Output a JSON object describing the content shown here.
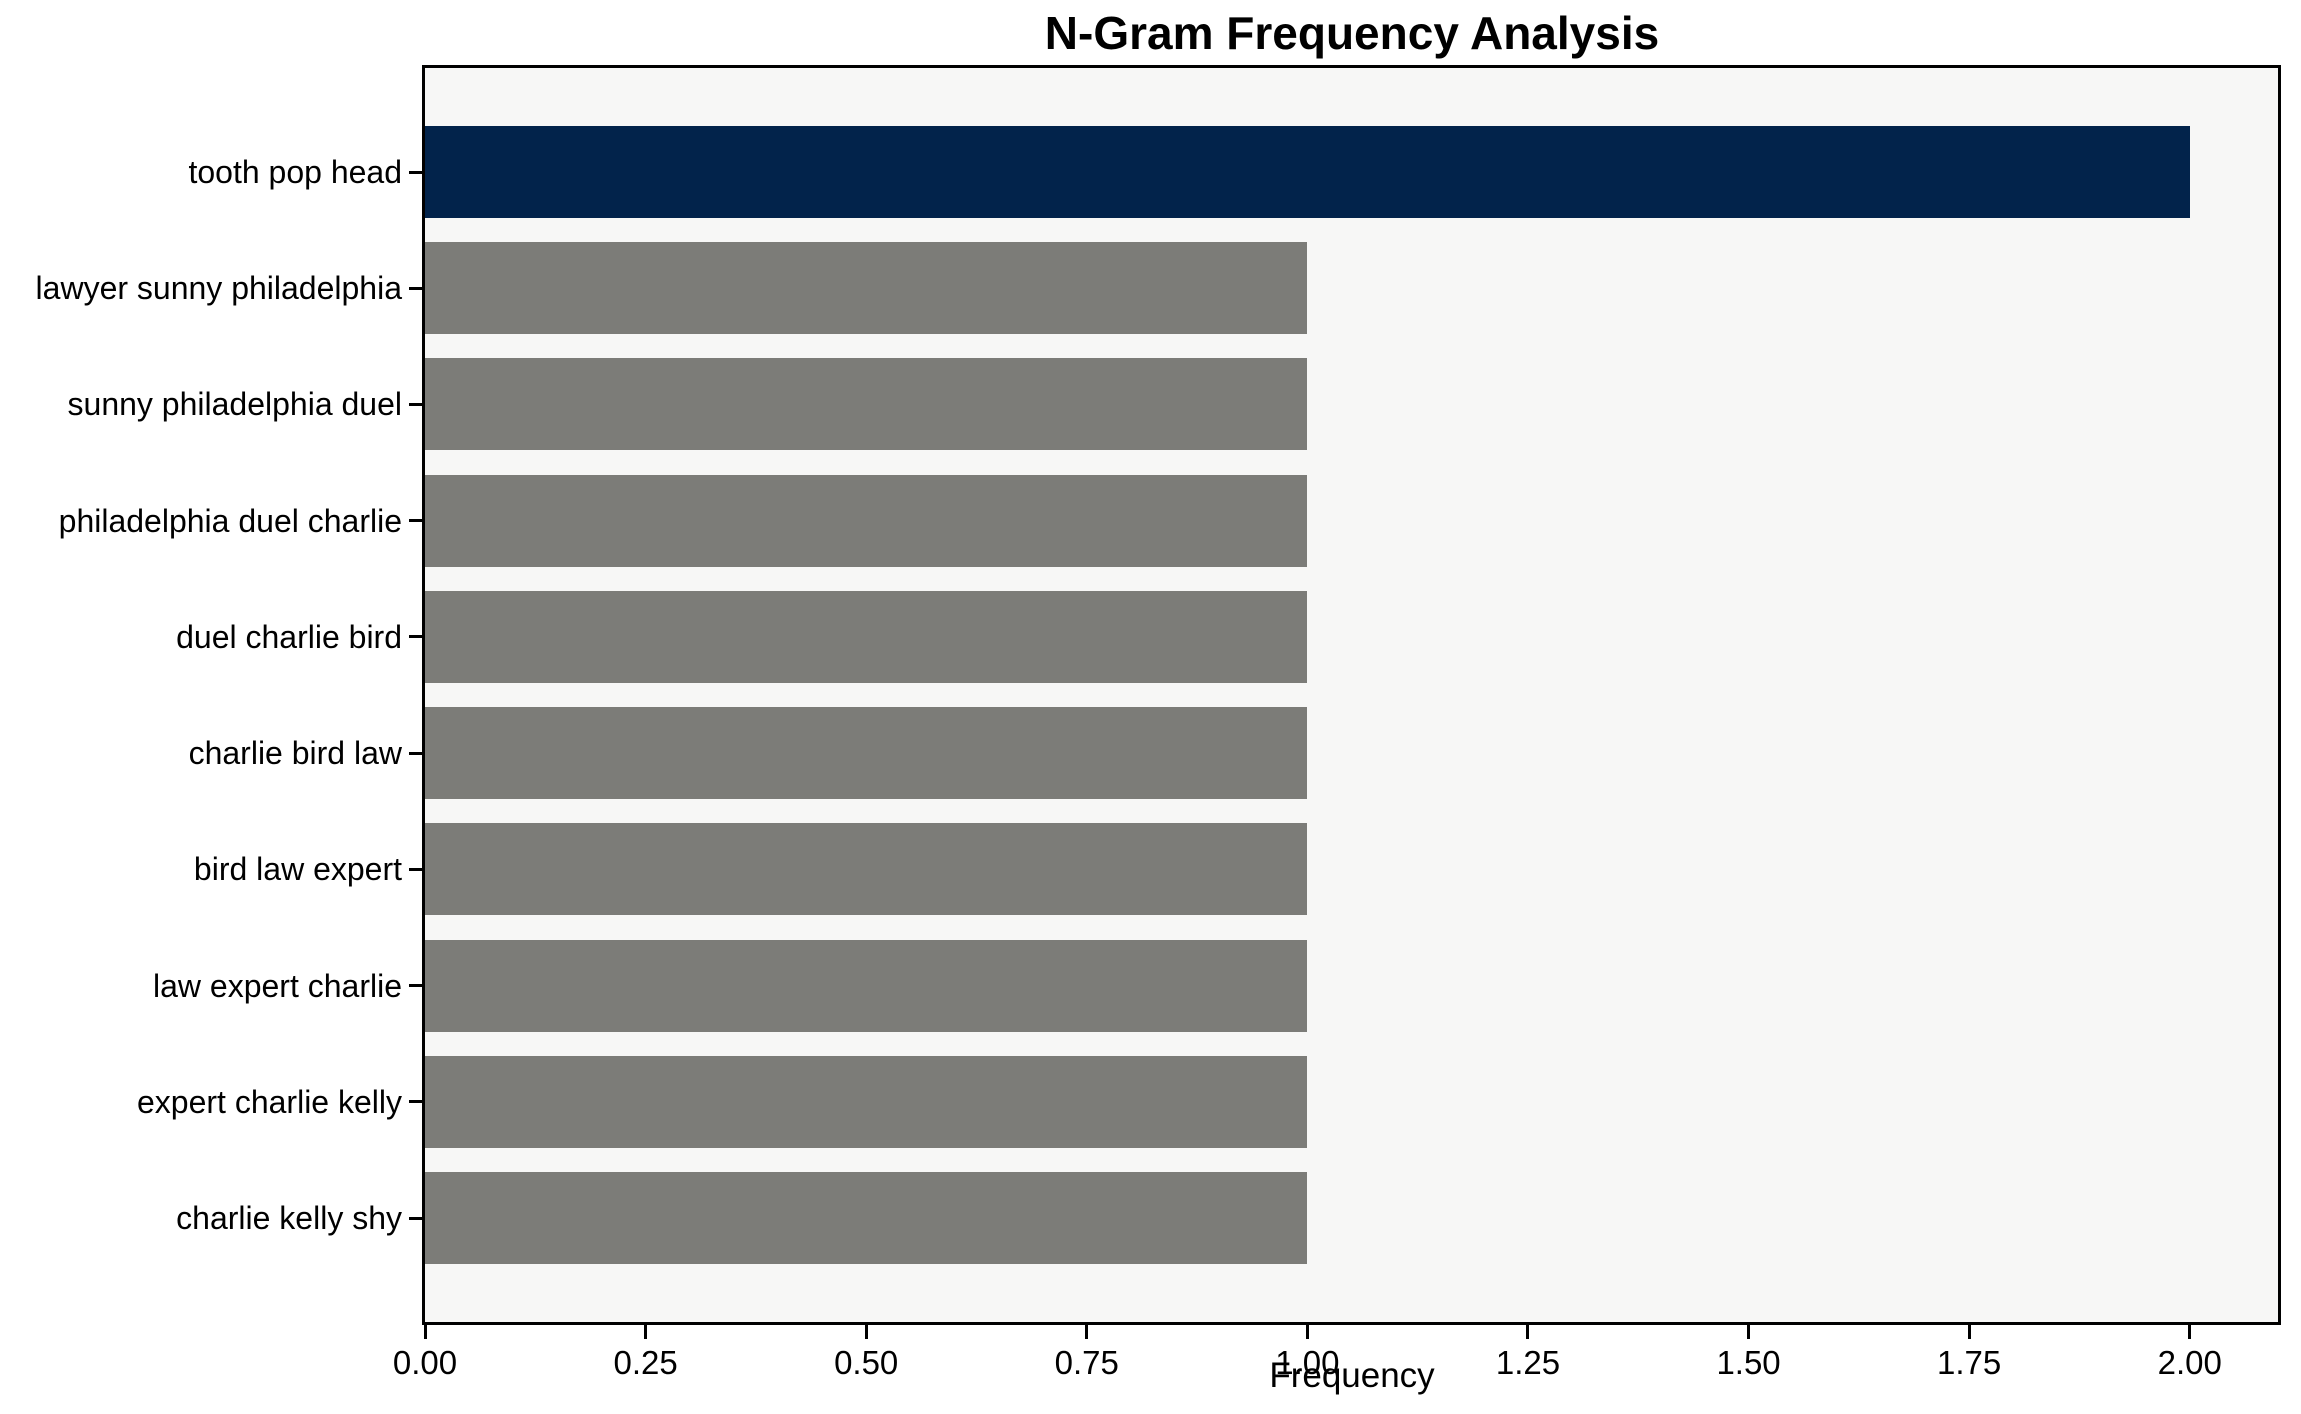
{
  "chart_data": {
    "type": "bar",
    "orientation": "horizontal",
    "title": "N-Gram Frequency Analysis",
    "xlabel": "Frequency",
    "ylabel": "",
    "categories": [
      "tooth pop head",
      "lawyer sunny philadelphia",
      "sunny philadelphia duel",
      "philadelphia duel charlie",
      "duel charlie bird",
      "charlie bird law",
      "bird law expert",
      "law expert charlie",
      "expert charlie kelly",
      "charlie kelly shy"
    ],
    "values": [
      2,
      1,
      1,
      1,
      1,
      1,
      1,
      1,
      1,
      1
    ],
    "xticks": [
      "0.00",
      "0.25",
      "0.50",
      "0.75",
      "1.00",
      "1.25",
      "1.50",
      "1.75",
      "2.00"
    ],
    "xlim": [
      0,
      2.1
    ],
    "grid": false,
    "legend_position": "none",
    "colors": {
      "highlight_bar": "#02234b",
      "default_bar": "#7c7c78",
      "plot_background": "#f7f7f6",
      "figure_background": "#ffffff",
      "axis": "#000000",
      "text": "#000000"
    },
    "highlight_index": 0
  }
}
